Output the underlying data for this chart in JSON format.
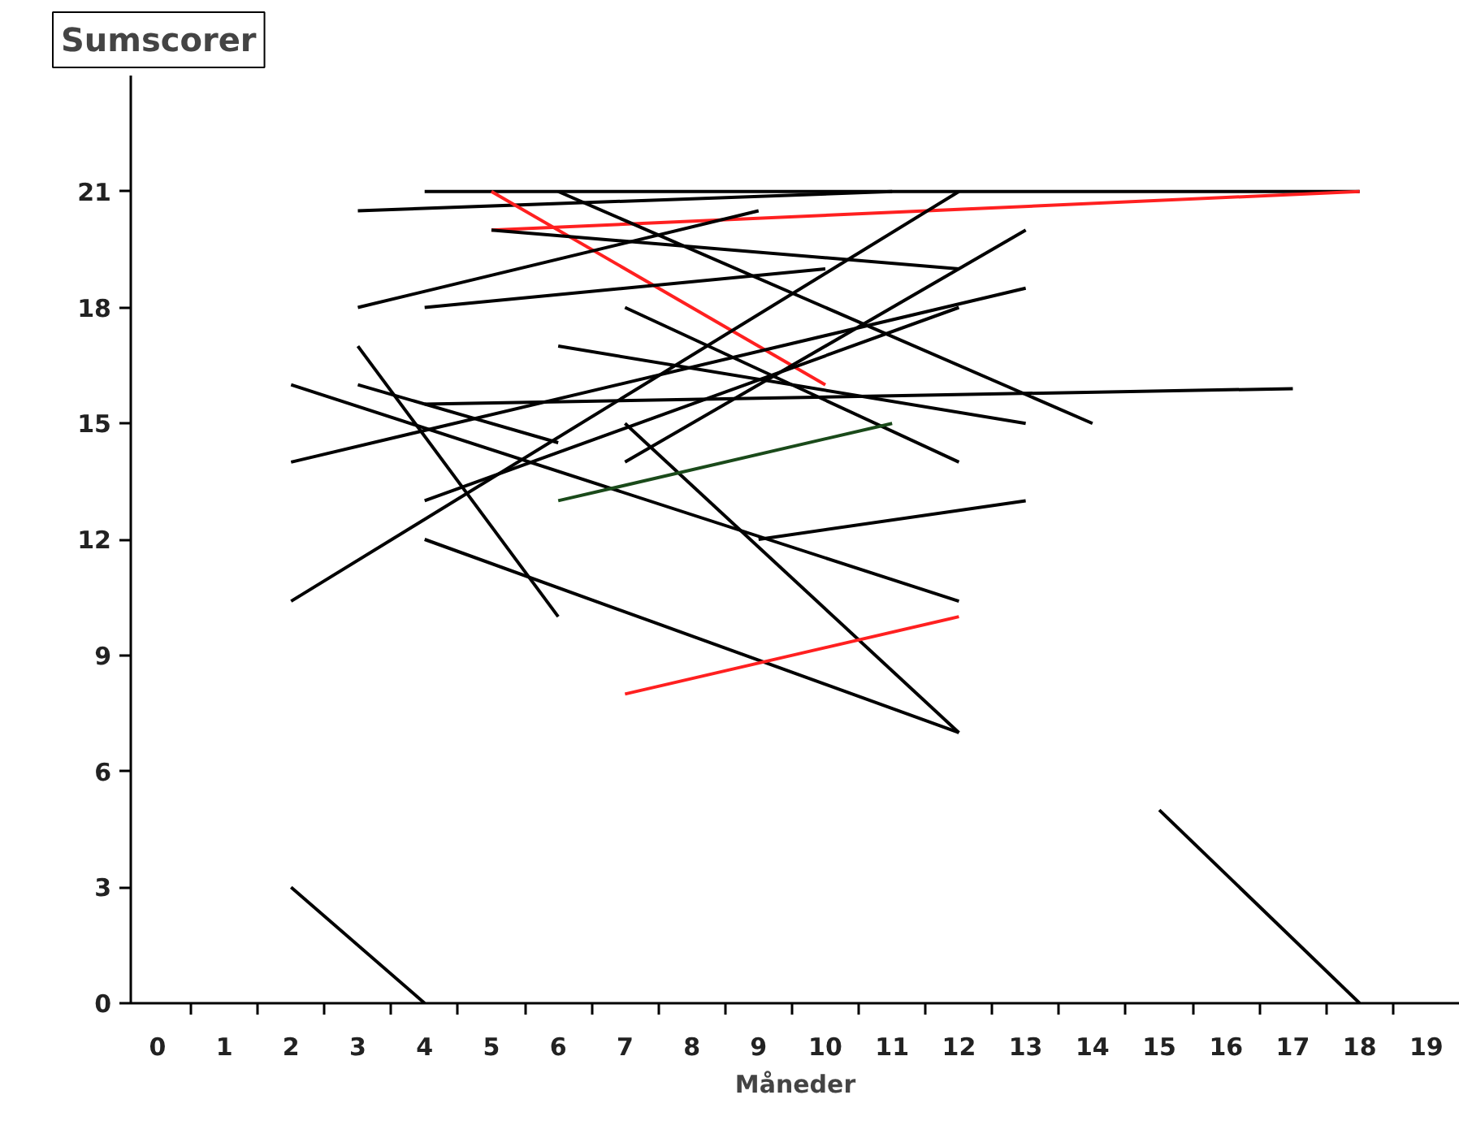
{
  "chart_data": {
    "type": "line",
    "ylabel": "Sumscorer",
    "xlabel": "Måneder",
    "xlim": [
      -0.4,
      19.5
    ],
    "xticks": [
      0,
      1,
      2,
      3,
      4,
      5,
      6,
      7,
      8,
      9,
      10,
      11,
      12,
      13,
      14,
      15,
      16,
      17,
      18,
      19
    ],
    "ylim": [
      0,
      24
    ],
    "yticks": [
      0,
      3,
      6,
      9,
      12,
      15,
      18,
      21
    ],
    "grid": false,
    "marker": "none",
    "line_style": "solid",
    "series": [
      {
        "color": "#000000",
        "x": [
          2,
          4
        ],
        "values": [
          3,
          0
        ]
      },
      {
        "color": "#000000",
        "x": [
          15,
          18
        ],
        "values": [
          5,
          0
        ]
      },
      {
        "color": "#000000",
        "x": [
          4,
          18
        ],
        "values": [
          21,
          21
        ]
      },
      {
        "color": "#000000",
        "x": [
          3,
          11
        ],
        "values": [
          20.5,
          21
        ]
      },
      {
        "color": "#ff2020",
        "x": [
          5,
          10
        ],
        "values": [
          21,
          16
        ]
      },
      {
        "color": "#ff2020",
        "x": [
          5,
          18
        ],
        "values": [
          20,
          21
        ]
      },
      {
        "color": "#000000",
        "x": [
          5,
          12
        ],
        "values": [
          20,
          19
        ]
      },
      {
        "color": "#000000",
        "x": [
          3,
          9
        ],
        "values": [
          18,
          20.5
        ]
      },
      {
        "color": "#000000",
        "x": [
          4,
          10
        ],
        "values": [
          18,
          19
        ]
      },
      {
        "color": "#000000",
        "x": [
          6,
          14
        ],
        "values": [
          21,
          15
        ]
      },
      {
        "color": "#000000",
        "x": [
          2,
          12
        ],
        "values": [
          10.4,
          21
        ]
      },
      {
        "color": "#000000",
        "x": [
          7,
          13
        ],
        "values": [
          14,
          20
        ]
      },
      {
        "color": "#000000",
        "x": [
          2,
          13
        ],
        "values": [
          14,
          18.5
        ]
      },
      {
        "color": "#000000",
        "x": [
          4,
          12
        ],
        "values": [
          13,
          18
        ]
      },
      {
        "color": "#000000",
        "x": [
          7,
          12
        ],
        "values": [
          18,
          14
        ]
      },
      {
        "color": "#000000",
        "x": [
          6,
          13
        ],
        "values": [
          17,
          15
        ]
      },
      {
        "color": "#000000",
        "x": [
          4,
          17
        ],
        "values": [
          15.5,
          15.9
        ]
      },
      {
        "color": "#000000",
        "x": [
          2,
          12
        ],
        "values": [
          16,
          10.4
        ]
      },
      {
        "color": "#000000",
        "x": [
          3,
          6
        ],
        "values": [
          16,
          14.5
        ]
      },
      {
        "color": "#000000",
        "x": [
          3,
          6
        ],
        "values": [
          17,
          10
        ]
      },
      {
        "color": "#000000",
        "x": [
          4,
          12
        ],
        "values": [
          12,
          7
        ]
      },
      {
        "color": "#000000",
        "x": [
          7,
          12
        ],
        "values": [
          15,
          7
        ]
      },
      {
        "color": "#000000",
        "x": [
          9,
          13
        ],
        "values": [
          12,
          13
        ]
      },
      {
        "color": "#ff2020",
        "x": [
          7,
          12
        ],
        "values": [
          8,
          10
        ]
      },
      {
        "color": "#1a4a1a",
        "x": [
          6,
          11
        ],
        "values": [
          13,
          15
        ]
      }
    ]
  }
}
